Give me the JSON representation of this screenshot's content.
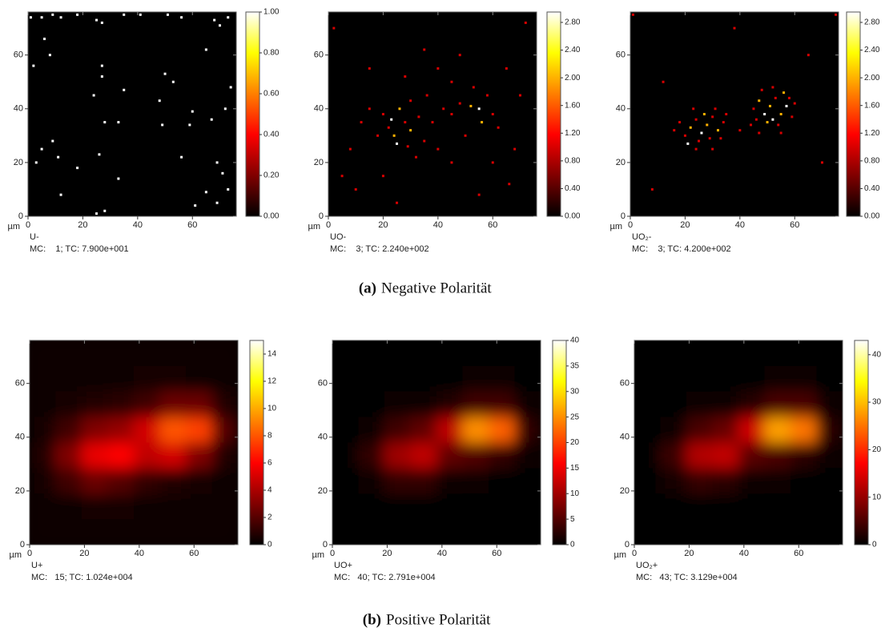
{
  "captions": [
    {
      "label": "(a)",
      "text": "Negative Polarität"
    },
    {
      "label": "(b)",
      "text": "Positive Polarität"
    }
  ],
  "chart_data": [
    {
      "type": "heatmap",
      "unit": "µm",
      "label": "U-",
      "stats": "MC:    1; TC: 7.900e+001",
      "xlim": [
        0,
        76
      ],
      "ylim": [
        0,
        76
      ],
      "xticks": [
        0,
        20,
        40,
        60
      ],
      "yticks": [
        0,
        20,
        40,
        60
      ],
      "clim": [
        0,
        1
      ],
      "cticks": [
        {
          "value": 0,
          "label": "0.00"
        },
        {
          "value": 0.2,
          "label": "0.20"
        },
        {
          "value": 0.4,
          "label": "0.40"
        },
        {
          "value": 0.6,
          "label": "0.60"
        },
        {
          "value": 0.8,
          "label": "0.80"
        },
        {
          "value": 1,
          "label": "1.00"
        }
      ],
      "points": {
        "x": [
          1,
          5,
          9,
          12,
          18,
          25,
          27,
          35,
          41,
          51,
          56,
          68,
          70,
          73,
          2,
          6,
          8,
          27,
          27,
          35,
          24,
          50,
          53,
          48,
          49,
          59,
          60,
          65,
          67,
          74,
          72,
          3,
          5,
          9,
          11,
          18,
          26,
          33,
          28,
          33,
          56,
          65,
          69,
          73,
          25,
          28,
          12,
          61,
          71,
          69
        ],
        "y": [
          74,
          74,
          75,
          74,
          75,
          73,
          72,
          75,
          75,
          75,
          74,
          73,
          71,
          74,
          56,
          66,
          60,
          56,
          52,
          47,
          45,
          53,
          50,
          43,
          34,
          34,
          39,
          62,
          36,
          48,
          40,
          20,
          25,
          28,
          22,
          18,
          23,
          14,
          35,
          35,
          22,
          9,
          5,
          10,
          1,
          2,
          8,
          4,
          16,
          20
        ],
        "values": [
          1,
          1,
          1,
          1,
          1,
          1,
          1,
          1,
          1,
          1,
          1,
          1,
          1,
          1,
          1,
          1,
          1,
          1,
          1,
          1,
          1,
          1,
          1,
          1,
          1,
          1,
          1,
          1,
          1,
          1,
          1,
          1,
          1,
          1,
          1,
          1,
          1,
          1,
          1,
          1,
          1,
          1,
          1,
          1,
          1,
          1,
          1,
          1,
          1,
          1
        ]
      }
    },
    {
      "type": "heatmap",
      "unit": "µm",
      "label": "UO-",
      "stats": "MC:    3; TC: 2.240e+002",
      "xlim": [
        0,
        76
      ],
      "ylim": [
        0,
        76
      ],
      "xticks": [
        0,
        20,
        40,
        60
      ],
      "yticks": [
        0,
        20,
        40,
        60
      ],
      "clim": [
        0,
        2.95
      ],
      "cticks": [
        {
          "value": 0,
          "label": "0.00"
        },
        {
          "value": 0.4,
          "label": "0.40"
        },
        {
          "value": 0.8,
          "label": "0.80"
        },
        {
          "value": 1.2,
          "label": "1.20"
        },
        {
          "value": 1.6,
          "label": "1.60"
        },
        {
          "value": 2,
          "label": "2.00"
        },
        {
          "value": 2.4,
          "label": "2.40"
        },
        {
          "value": 2.8,
          "label": "2.80"
        }
      ],
      "points": {
        "x": [
          22,
          24,
          25,
          28,
          30,
          33,
          20,
          18,
          15,
          38,
          42,
          45,
          48,
          52,
          55,
          56,
          58,
          60,
          62,
          50,
          35,
          40,
          26,
          30,
          12,
          8,
          5,
          10,
          20,
          32,
          45,
          60,
          68,
          70,
          65,
          40,
          28,
          15,
          48,
          35,
          55,
          66,
          2,
          72,
          25,
          45,
          53,
          36,
          23,
          29
        ],
        "y": [
          33,
          30,
          27,
          35,
          32,
          37,
          38,
          30,
          40,
          35,
          40,
          38,
          42,
          41,
          40,
          35,
          45,
          38,
          33,
          30,
          28,
          25,
          40,
          43,
          35,
          25,
          15,
          10,
          15,
          22,
          20,
          20,
          25,
          45,
          55,
          55,
          52,
          55,
          60,
          62,
          8,
          12,
          70,
          72,
          5,
          50,
          48,
          45,
          36,
          26
        ],
        "values": [
          1,
          2,
          3,
          1,
          2,
          1,
          1,
          1,
          1,
          1,
          1,
          1,
          1,
          2,
          3,
          2,
          1,
          1,
          1,
          1,
          1,
          1,
          2,
          1,
          1,
          1,
          1,
          1,
          1,
          1,
          1,
          1,
          1,
          1,
          1,
          1,
          1,
          1,
          1,
          1,
          1,
          1,
          1,
          1,
          1,
          1,
          1,
          1,
          3,
          1
        ]
      }
    },
    {
      "type": "heatmap",
      "unit": "µm",
      "label": "UO₂-",
      "stats": "MC:    3; TC: 4.200e+002",
      "xlim": [
        0,
        76
      ],
      "ylim": [
        0,
        76
      ],
      "xticks": [
        0,
        20,
        40,
        60
      ],
      "yticks": [
        0,
        20,
        40,
        60
      ],
      "clim": [
        0,
        2.95
      ],
      "cticks": [
        {
          "value": 0,
          "label": "0.00"
        },
        {
          "value": 0.4,
          "label": "0.40"
        },
        {
          "value": 0.8,
          "label": "0.80"
        },
        {
          "value": 1.2,
          "label": "1.20"
        },
        {
          "value": 1.6,
          "label": "1.60"
        },
        {
          "value": 2,
          "label": "2.00"
        },
        {
          "value": 2.4,
          "label": "2.40"
        },
        {
          "value": 2.8,
          "label": "2.80"
        }
      ],
      "points": {
        "x": [
          20,
          22,
          24,
          26,
          28,
          30,
          32,
          34,
          21,
          25,
          29,
          33,
          18,
          23,
          27,
          31,
          35,
          16,
          24,
          30,
          45,
          47,
          49,
          51,
          53,
          55,
          57,
          59,
          46,
          50,
          54,
          58,
          48,
          52,
          56,
          60,
          44,
          52,
          55,
          47,
          40,
          12,
          65,
          70,
          8,
          38,
          75,
          1
        ],
        "y": [
          30,
          33,
          36,
          31,
          34,
          37,
          32,
          35,
          27,
          28,
          29,
          29,
          35,
          40,
          38,
          40,
          38,
          32,
          25,
          25,
          40,
          43,
          38,
          41,
          44,
          38,
          41,
          37,
          36,
          35,
          34,
          44,
          47,
          48,
          46,
          42,
          34,
          36,
          31,
          31,
          32,
          50,
          60,
          20,
          10,
          70,
          75,
          75
        ],
        "values": [
          1,
          2,
          1,
          3,
          2,
          1,
          2,
          1,
          3,
          1,
          1,
          1,
          1,
          1,
          2,
          1,
          1,
          1,
          1,
          1,
          1,
          2,
          3,
          2,
          1,
          2,
          3,
          1,
          1,
          2,
          1,
          1,
          1,
          1,
          2,
          1,
          1,
          3,
          1,
          1,
          1,
          1,
          1,
          1,
          1,
          1,
          1,
          1
        ]
      }
    },
    {
      "type": "heatmap",
      "unit": "µm",
      "label": "U+",
      "stats": "MC:   15; TC: 1.024e+004",
      "xlim": [
        0,
        76
      ],
      "ylim": [
        0,
        76
      ],
      "xticks": [
        0,
        20,
        40,
        60
      ],
      "yticks": [
        0,
        20,
        40,
        60
      ],
      "clim": [
        0,
        15
      ],
      "cticks": [
        0,
        2,
        4,
        6,
        8,
        10,
        12,
        14
      ],
      "z": [
        [
          0.3,
          0.3,
          0.3,
          0.3,
          0.3,
          0.3,
          0.3,
          0.3
        ],
        [
          0.3,
          0.4,
          0.4,
          0.4,
          0.5,
          0.5,
          0.4,
          0.3
        ],
        [
          0.4,
          0.6,
          0.8,
          1,
          1.5,
          2.5,
          2.5,
          0.8
        ],
        [
          0.6,
          1.5,
          3,
          3.5,
          5,
          8,
          7.5,
          2
        ],
        [
          0.8,
          3,
          5.5,
          6,
          4.5,
          5,
          3,
          0.8
        ],
        [
          0.5,
          1.5,
          2.5,
          2,
          1.2,
          0.8,
          0.6,
          0.4
        ],
        [
          0.3,
          0.4,
          0.5,
          0.5,
          0.4,
          0.3,
          0.3,
          0.3
        ],
        [
          0.3,
          0.3,
          0.3,
          0.3,
          0.3,
          0.3,
          0.3,
          0.3
        ]
      ]
    },
    {
      "type": "heatmap",
      "unit": "µm",
      "label": "UO+",
      "stats": "MC:   40; TC: 2.791e+004",
      "xlim": [
        0,
        76
      ],
      "ylim": [
        0,
        76
      ],
      "xticks": [
        0,
        20,
        40,
        60
      ],
      "yticks": [
        0,
        20,
        40,
        60
      ],
      "clim": [
        0,
        40
      ],
      "cticks": [
        0,
        5,
        10,
        15,
        20,
        25,
        30,
        35,
        40
      ],
      "z": [
        [
          0.2,
          0.2,
          0.2,
          0.2,
          0.2,
          0.2,
          0.2,
          0.2
        ],
        [
          0.2,
          0.2,
          0.3,
          0.3,
          0.4,
          0.6,
          0.5,
          0.2
        ],
        [
          0.2,
          0.3,
          0.6,
          1,
          2,
          4,
          4,
          1
        ],
        [
          0.3,
          1,
          4,
          6,
          12,
          25,
          22,
          3
        ],
        [
          0.4,
          3,
          10,
          12,
          6,
          5,
          3,
          0.6
        ],
        [
          0.2,
          1,
          3,
          3,
          1,
          0.5,
          0.3,
          0.2
        ],
        [
          0.2,
          0.2,
          0.3,
          0.3,
          0.3,
          0.2,
          0.2,
          0.2
        ],
        [
          0.2,
          0.2,
          0.2,
          0.2,
          0.2,
          0.2,
          0.2,
          0.2
        ]
      ]
    },
    {
      "type": "heatmap",
      "unit": "µm",
      "label": "UO₂+",
      "stats": "MC:   43; TC: 3.129e+004",
      "xlim": [
        0,
        76
      ],
      "ylim": [
        0,
        76
      ],
      "xticks": [
        0,
        20,
        40,
        60
      ],
      "yticks": [
        0,
        20,
        40,
        60
      ],
      "clim": [
        0,
        43
      ],
      "cticks": [
        0,
        10,
        20,
        30,
        40
      ],
      "z": [
        [
          0.2,
          0.2,
          0.2,
          0.2,
          0.2,
          0.2,
          0.2,
          0.2
        ],
        [
          0.2,
          0.2,
          0.3,
          0.3,
          0.4,
          0.7,
          0.6,
          0.2
        ],
        [
          0.2,
          0.3,
          0.6,
          1,
          2.5,
          5,
          5,
          1
        ],
        [
          0.3,
          1,
          5,
          7,
          14,
          28,
          25,
          3
        ],
        [
          0.4,
          4,
          12,
          13,
          6,
          5,
          3,
          0.6
        ],
        [
          0.2,
          1.2,
          3.5,
          3,
          1,
          0.5,
          0.3,
          0.2
        ],
        [
          0.2,
          0.2,
          0.3,
          0.3,
          0.3,
          0.2,
          0.2,
          0.2
        ],
        [
          0.2,
          0.2,
          0.2,
          0.2,
          0.2,
          0.2,
          0.2,
          0.2
        ]
      ]
    }
  ]
}
